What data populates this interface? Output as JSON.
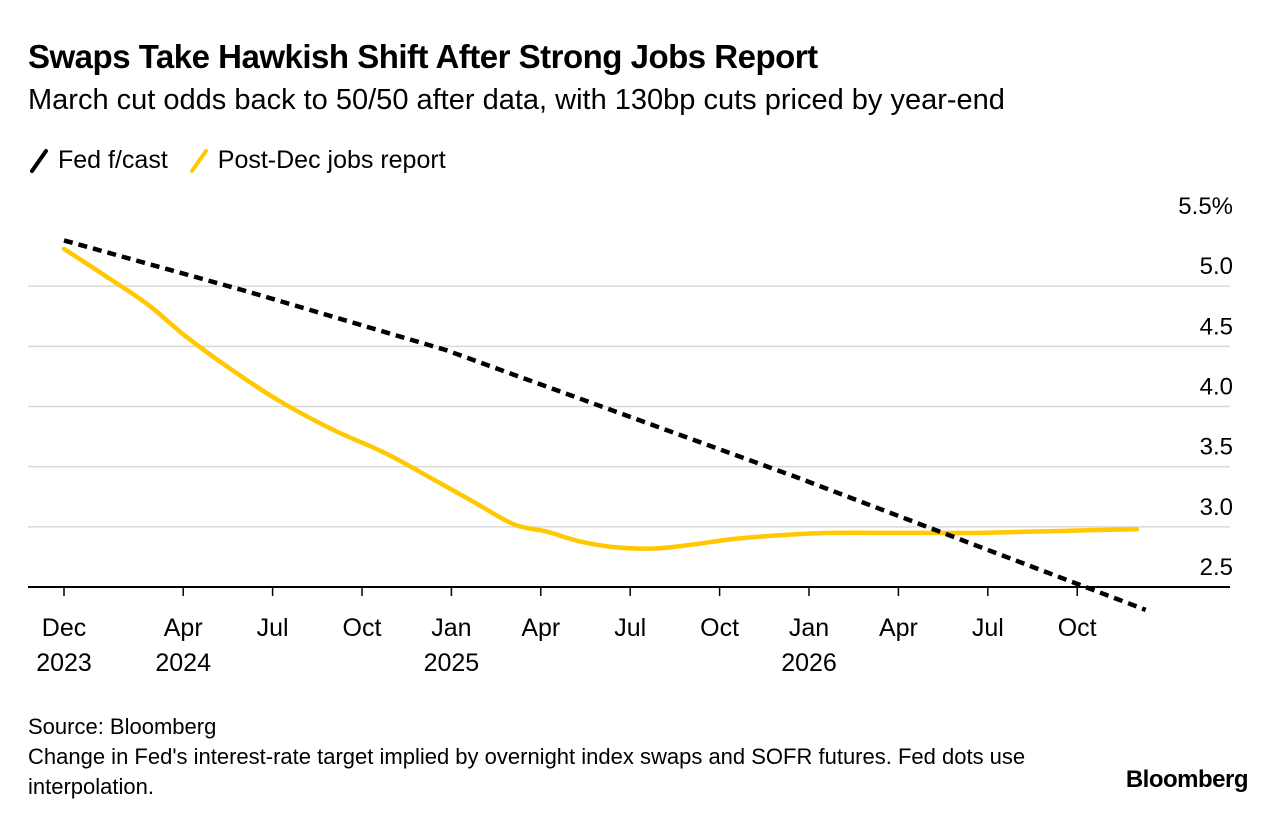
{
  "chart_data": {
    "type": "line",
    "title": "Swaps Take Hawkish Shift After Strong Jobs Report",
    "subtitle": "March cut odds back to 50/50 after data, with 130bp cuts priced by year-end",
    "legend": [
      {
        "name": "Fed f/cast",
        "color": "#000000",
        "style": "dashed"
      },
      {
        "name": "Post-Dec jobs report",
        "color": "#ffc800",
        "style": "solid"
      }
    ],
    "x_unit": "months since Dec 2023",
    "xlim": [
      0,
      35.8
    ],
    "y_ticks": [
      "5.5%",
      "5.0",
      "4.5",
      "4.0",
      "3.5",
      "3.0",
      "2.5"
    ],
    "y_tick_values": [
      5.5,
      5.0,
      4.5,
      4.0,
      3.5,
      3.0,
      2.5
    ],
    "ylim": [
      2.5,
      5.5
    ],
    "x_ticks": [
      {
        "m": 0,
        "line1": "Dec",
        "line2": "2023"
      },
      {
        "m": 4,
        "line1": "Apr",
        "line2": "2024"
      },
      {
        "m": 7,
        "line1": "Jul",
        "line2": ""
      },
      {
        "m": 10,
        "line1": "Oct",
        "line2": ""
      },
      {
        "m": 13,
        "line1": "Jan",
        "line2": "2025"
      },
      {
        "m": 16,
        "line1": "Apr",
        "line2": ""
      },
      {
        "m": 19,
        "line1": "Jul",
        "line2": ""
      },
      {
        "m": 22,
        "line1": "Oct",
        "line2": ""
      },
      {
        "m": 25,
        "line1": "Jan",
        "line2": "2026"
      },
      {
        "m": 28,
        "line1": "Apr",
        "line2": ""
      },
      {
        "m": 31,
        "line1": "Jul",
        "line2": ""
      },
      {
        "m": 34,
        "line1": "Oct",
        "line2": ""
      }
    ],
    "series": [
      {
        "name": "Fed f/cast",
        "x": [
          0,
          6.1,
          12.8,
          24.5,
          36.3
        ],
        "values": [
          5.38,
          4.96,
          4.47,
          3.42,
          2.31
        ]
      },
      {
        "name": "Post-Dec jobs report",
        "x": [
          0,
          1.3,
          2.8,
          4.1,
          5.6,
          7.2,
          9.0,
          10.8,
          12.5,
          13.8,
          15.1,
          16.2,
          17.3,
          18.5,
          19.8,
          21.0,
          22.5,
          24.0,
          25.7,
          27.4,
          29.0,
          30.8,
          32.5,
          34.2,
          36.0
        ],
        "values": [
          5.31,
          5.1,
          4.85,
          4.58,
          4.31,
          4.05,
          3.81,
          3.61,
          3.38,
          3.2,
          3.02,
          2.96,
          2.88,
          2.83,
          2.82,
          2.85,
          2.9,
          2.93,
          2.95,
          2.95,
          2.95,
          2.95,
          2.96,
          2.97,
          2.98
        ]
      }
    ]
  },
  "footer": {
    "source": "Source: Bloomberg",
    "note": "Change in Fed's interest-rate target implied by overnight index swaps and SOFR futures. Fed dots use interpolation."
  },
  "brand": "Bloomberg"
}
